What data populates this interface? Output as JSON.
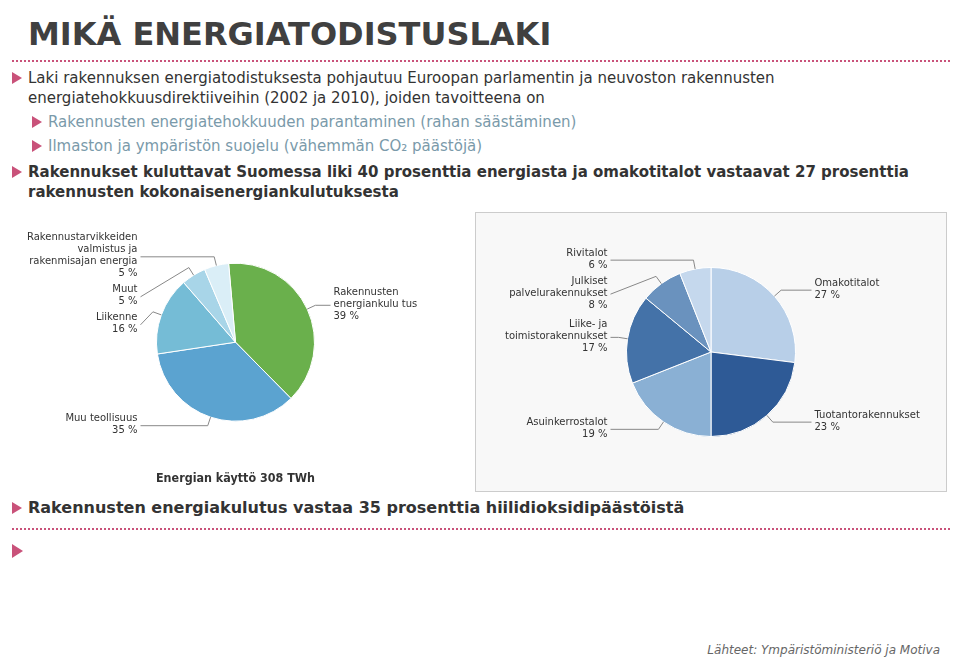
{
  "title": "MIKÄ ENERGIATODISTUSLAKI",
  "annotations": [
    "Laki rakennuksen energiatodistuksesta pohjautuu Euroopan parlamentin ja neuvoston rakennusten energiatehokkuusdirektiiveihin (2002 ja 2010), joiden tavoitteena on",
    "Rakennusten energiatehokkuuden parantaminen (rahan säästäminen)",
    "Ilmaston ja ympäristön suojelu (vähemmän CO₂ päästöjä)",
    "Rakennukset kuluttavat Suomessa liki 40 prosenttia energiasta ja omakotitalot vastaavat 27 prosenttia rakennusten kokonaisenergiankulutuksesta",
    "Rakennusten energiakulutus vastaa 35 prosenttia hiilidioksidipäästöistä",
    "Lähteet: Ympäristöministeriö ja Motiva"
  ],
  "chart_data": [
    {
      "type": "pie",
      "title": "Energian käyttö 308 TWh",
      "categories": [
        "Rakennusten energiankulu tus",
        "Muu teollisuus",
        "Liikenne",
        "Muut",
        "Rakennustarvikkeiden valmistus ja rakenmisajan energia"
      ],
      "values": [
        39,
        35,
        16,
        5,
        5
      ],
      "value_labels": [
        "39 %",
        "35 %",
        "16 %",
        "5 %",
        "5 %"
      ],
      "colors": [
        "#6ab04c",
        "#5ba3d0",
        "#75bcd6",
        "#a8d5e8",
        "#daeef7"
      ],
      "legend": false
    },
    {
      "type": "pie",
      "categories": [
        "Omakotitalot",
        "Tuotantorakennukset",
        "Asuinkerrostalot",
        "Liike- ja toimistorakennukset",
        "Julkiset palvelurakennukset",
        "Rivitalot"
      ],
      "values": [
        27,
        23,
        19,
        17,
        8,
        6
      ],
      "value_labels": [
        "27 %",
        "23 %",
        "19 %",
        "17 %",
        "8 %",
        "6 %"
      ],
      "colors": [
        "#b8cfe8",
        "#2e5a96",
        "#8ab0d4",
        "#4472a8",
        "#6a92be",
        "#c5d8ed"
      ],
      "legend": false
    }
  ]
}
